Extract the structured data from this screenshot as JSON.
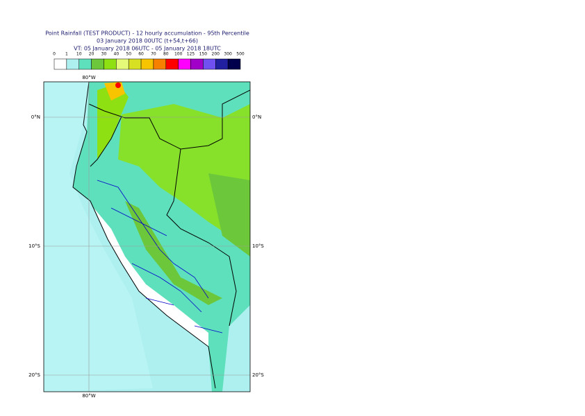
{
  "header": {
    "title_lines": [
      "Point Rainfall (TEST PRODUCT) - 12 hourly accumulation - 95th Percentile",
      "03 January 2018 00UTC (t+54,t+66)",
      "VT: 05 January 2018 06UTC - 05 January 2018 18UTC"
    ]
  },
  "legend": {
    "labels": [
      "0",
      "1",
      "10",
      "20",
      "30",
      "40",
      "50",
      "60",
      "70",
      "80",
      "100",
      "125",
      "150",
      "200",
      "300",
      "500"
    ],
    "colors": [
      "#ffffff",
      "#aef0f0",
      "#5fe0bc",
      "#6cc83a",
      "#8ee012",
      "#e4fa78",
      "#d8e024",
      "#f8c400",
      "#f88000",
      "#ff0000",
      "#ff00ff",
      "#a000c8",
      "#7050f0",
      "#2020a0",
      "#00004c"
    ]
  },
  "map": {
    "top_lon_label": "80°W",
    "bottom_lon_label": "80°W",
    "lat_labels": [
      "0°N",
      "10°S",
      "20°S"
    ]
  }
}
